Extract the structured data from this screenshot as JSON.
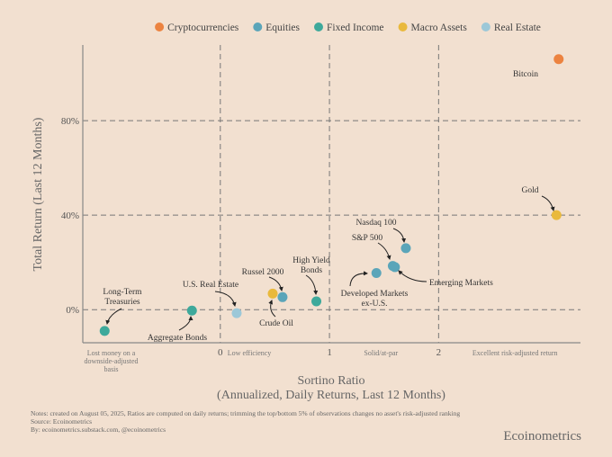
{
  "chart_data": {
    "type": "scatter",
    "xlabel": [
      "Sortino Ratio",
      "(Annualized, Daily Returns, Last 12 Months)"
    ],
    "ylabel": "Total Return (Last 12 Months)",
    "xlim": [
      -1.26,
      3.3
    ],
    "ylim": [
      -14,
      112
    ],
    "x_ticks": [
      {
        "value": 0,
        "label": "0"
      },
      {
        "value": 1,
        "label": "1"
      },
      {
        "value": 2,
        "label": "2"
      }
    ],
    "y_ticks": [
      {
        "value": 0,
        "label": "0%"
      },
      {
        "value": 40,
        "label": "40%"
      },
      {
        "value": 80,
        "label": "80%"
      }
    ],
    "x_zone_labels": [
      {
        "x": -1.0,
        "text": [
          "Lost money on a",
          "downside-adjusted",
          "basis"
        ]
      },
      {
        "x": 0,
        "text": [
          "Low efficiency"
        ]
      },
      {
        "x": 1.25,
        "text": [
          "Solid/at-par"
        ]
      },
      {
        "x": 2.7,
        "text": [
          "Excellent risk-adjusted return"
        ]
      }
    ],
    "grid": "dashed at ticks",
    "legend_position": "top",
    "legend": [
      {
        "name": "Cryptocurrencies",
        "color": "#ec8340"
      },
      {
        "name": "Equities",
        "color": "#5ba5b9"
      },
      {
        "name": "Fixed Income",
        "color": "#3ea99b"
      },
      {
        "name": "Macro Assets",
        "color": "#e9b93c"
      },
      {
        "name": "Real Estate",
        "color": "#9cc8d8"
      }
    ],
    "points": [
      {
        "name": "Bitcoin",
        "category": "Cryptocurrencies",
        "x": 3.1,
        "y": 106
      },
      {
        "name": "Gold",
        "category": "Macro Assets",
        "x": 3.08,
        "y": 40
      },
      {
        "name": "Nasdaq 100",
        "category": "Equities",
        "x": 1.7,
        "y": 26
      },
      {
        "name": "S&P 500",
        "category": "Equities",
        "x": 1.58,
        "y": 18.5
      },
      {
        "name": "Emerging Markets",
        "category": "Equities",
        "x": 1.6,
        "y": 18
      },
      {
        "name": "Developed Markets ex-U.S.",
        "category": "Equities",
        "x": 1.43,
        "y": 15.5
      },
      {
        "name": "High Yield Bonds",
        "category": "Fixed Income",
        "x": 0.88,
        "y": 3.5
      },
      {
        "name": "Russel 2000",
        "category": "Equities",
        "x": 0.57,
        "y": 5.3
      },
      {
        "name": "Crude Oil",
        "category": "Macro Assets",
        "x": 0.48,
        "y": 6.8
      },
      {
        "name": "U.S. Real Estate",
        "category": "Real Estate",
        "x": 0.15,
        "y": -1.5
      },
      {
        "name": "Aggregate Bonds",
        "category": "Fixed Income",
        "x": -0.26,
        "y": -0.4
      },
      {
        "name": "Long-Term Treasuries",
        "category": "Fixed Income",
        "x": -1.06,
        "y": -9
      }
    ]
  },
  "notes": [
    "Notes: created on August 05, 2025, Ratios are computed on daily returns; trimming the top/bottom 5% of observations changes no asset's risk-adjusted ranking",
    "Source: Ecoinometrics",
    "By: ecoinometrics.substack.com, @ecoinometrics"
  ],
  "brand": "Ecoinometrics"
}
